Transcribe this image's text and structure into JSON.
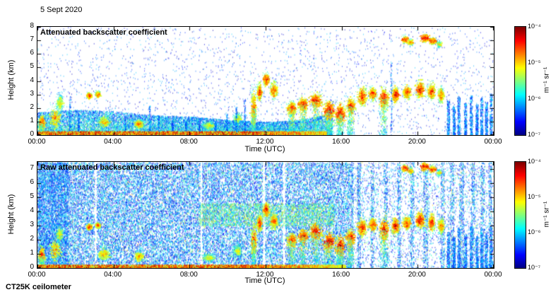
{
  "header": {
    "date": "5 Sept 2020"
  },
  "footer": {
    "instrument": "CT25K ceilometer"
  },
  "chart_data": [
    {
      "type": "heatmap",
      "title": "Attenuated backscatter coefficient",
      "xlabel": "Time (UTC)",
      "ylabel": "Height (km)",
      "x_range_hours": [
        0,
        24
      ],
      "x_tick_hours": [
        0,
        4,
        8,
        12,
        16,
        20,
        24
      ],
      "x_tick_labels": [
        "00:00",
        "04:00",
        "08:00",
        "12:00",
        "16:00",
        "20:00",
        "00:00"
      ],
      "ylim": [
        0,
        8
      ],
      "y_ticks": [
        0,
        1,
        2,
        3,
        4,
        5,
        6,
        7,
        8
      ],
      "colorbar": {
        "colormap": "jet",
        "scale": "log",
        "range": [
          "1e-7",
          "1e-4"
        ],
        "tick_labels": [
          "10⁻⁴",
          "10⁻⁵",
          "10⁻⁶",
          "10⁻⁷"
        ],
        "unit": "m⁻¹ sr⁻¹"
      },
      "render": {
        "seed": 7,
        "background_noise": {
          "n": 2600,
          "vmax": 0.3
        },
        "mixed_layer_top": [
          [
            0,
            1.7
          ],
          [
            2,
            1.9
          ],
          [
            4,
            1.8
          ],
          [
            6,
            1.5
          ],
          [
            8,
            1.4
          ],
          [
            10,
            1.15
          ],
          [
            12,
            1.0
          ],
          [
            13.5,
            1.1
          ],
          [
            15.5,
            1.6
          ]
        ],
        "mixed_layer_n": 15000,
        "surface_layer": {
          "t0": 0,
          "t1": 15.2,
          "h": 0.3,
          "n": 9000
        },
        "clouds": [
          {
            "t": 0.2,
            "h": 0.9,
            "st": 0.12,
            "sh": 0.7,
            "v": 0.85,
            "precip": true
          },
          {
            "t": 0.9,
            "h": 1.3,
            "st": 0.25,
            "sh": 0.9,
            "v": 0.72
          },
          {
            "t": 1.15,
            "h": 2.4,
            "st": 0.15,
            "sh": 0.7,
            "v": 0.62
          },
          {
            "t": 2.7,
            "h": 2.95,
            "st": 0.1,
            "sh": 0.22,
            "v": 0.88
          },
          {
            "t": 3.15,
            "h": 3.05,
            "st": 0.1,
            "sh": 0.22,
            "v": 0.84
          },
          {
            "t": 3.5,
            "h": 1.0,
            "st": 0.25,
            "sh": 0.5,
            "v": 0.7
          },
          {
            "t": 5.3,
            "h": 0.85,
            "st": 0.18,
            "sh": 0.35,
            "v": 0.78
          },
          {
            "t": 9.0,
            "h": 0.75,
            "st": 0.25,
            "sh": 0.35,
            "v": 0.62
          },
          {
            "t": 10.5,
            "h": 1.25,
            "st": 0.18,
            "sh": 0.5,
            "v": 0.6
          },
          {
            "t": 11.35,
            "h": 2.0,
            "st": 0.12,
            "sh": 1.6,
            "v": 0.8,
            "precip": true
          },
          {
            "t": 11.65,
            "h": 3.2,
            "st": 0.1,
            "sh": 0.7,
            "v": 0.85
          },
          {
            "t": 12.0,
            "h": 4.15,
            "st": 0.13,
            "sh": 0.5,
            "v": 0.9
          },
          {
            "t": 12.4,
            "h": 3.35,
            "st": 0.16,
            "sh": 0.7,
            "v": 0.8
          },
          {
            "t": 13.35,
            "h": 2.0,
            "st": 0.2,
            "sh": 0.55,
            "v": 0.85,
            "precip": true
          },
          {
            "t": 13.95,
            "h": 2.3,
            "st": 0.2,
            "sh": 0.55,
            "v": 0.9,
            "precip": true
          },
          {
            "t": 14.6,
            "h": 2.6,
            "st": 0.25,
            "sh": 0.65,
            "v": 0.9,
            "precip": true
          },
          {
            "t": 15.3,
            "h": 1.85,
            "st": 0.25,
            "sh": 0.75,
            "v": 0.95,
            "precip": true
          },
          {
            "t": 15.9,
            "h": 1.55,
            "st": 0.2,
            "sh": 0.85,
            "v": 0.95,
            "precip": true
          },
          {
            "t": 16.45,
            "h": 2.2,
            "st": 0.18,
            "sh": 0.65,
            "v": 0.9,
            "precip": true
          },
          {
            "t": 17.05,
            "h": 2.9,
            "st": 0.2,
            "sh": 0.75,
            "v": 0.85
          },
          {
            "t": 17.6,
            "h": 3.1,
            "st": 0.16,
            "sh": 0.55,
            "v": 0.85
          },
          {
            "t": 18.2,
            "h": 2.75,
            "st": 0.2,
            "sh": 0.85,
            "v": 0.9,
            "precip": true
          },
          {
            "t": 18.8,
            "h": 3.0,
            "st": 0.16,
            "sh": 0.65,
            "v": 0.9
          },
          {
            "t": 19.4,
            "h": 3.2,
            "st": 0.16,
            "sh": 0.55,
            "v": 0.85
          },
          {
            "t": 20.1,
            "h": 3.4,
            "st": 0.2,
            "sh": 0.65,
            "v": 0.9
          },
          {
            "t": 20.7,
            "h": 3.25,
            "st": 0.16,
            "sh": 0.7,
            "v": 0.85
          },
          {
            "t": 21.2,
            "h": 3.0,
            "st": 0.12,
            "sh": 0.55,
            "v": 0.8
          }
        ],
        "cirrus": [
          {
            "t": 19.3,
            "h": 7.1,
            "st": 0.13,
            "sh": 0.3,
            "v": 0.8
          },
          {
            "t": 19.6,
            "h": 6.9,
            "st": 0.1,
            "sh": 0.25,
            "v": 0.7
          },
          {
            "t": 20.35,
            "h": 7.2,
            "st": 0.18,
            "sh": 0.35,
            "v": 0.88
          },
          {
            "t": 20.75,
            "h": 7.0,
            "st": 0.14,
            "sh": 0.3,
            "v": 0.8
          },
          {
            "t": 21.1,
            "h": 6.75,
            "st": 0.09,
            "sh": 0.25,
            "v": 0.6
          }
        ],
        "spikes": [
          [
            1.7,
            2.9
          ],
          [
            2.15,
            1.6
          ],
          [
            4.6,
            1.2
          ],
          [
            5.9,
            2.2
          ],
          [
            6.35,
            1.5
          ],
          [
            7.1,
            1.1
          ],
          [
            7.8,
            1.0
          ],
          [
            8.5,
            1.3
          ],
          [
            9.35,
            1.1
          ],
          [
            9.95,
            1.6
          ],
          [
            10.45,
            2.1
          ],
          [
            10.9,
            2.7
          ],
          [
            18.6,
            5.4
          ]
        ],
        "late_columns": [
          [
            21.6,
            2.6
          ],
          [
            21.9,
            2.2
          ],
          [
            22.15,
            2.9
          ],
          [
            22.5,
            2.4
          ],
          [
            22.8,
            3.0
          ],
          [
            23.1,
            2.3
          ],
          [
            23.35,
            2.8
          ],
          [
            23.6,
            2.5
          ],
          [
            23.85,
            3.1
          ]
        ]
      }
    },
    {
      "type": "heatmap",
      "title": "Raw attenuated backscatter coefficient",
      "xlabel": "Time (UTC)",
      "ylabel": "Height (km)",
      "x_range_hours": [
        0,
        24
      ],
      "x_tick_hours": [
        0,
        4,
        8,
        12,
        16,
        20,
        24
      ],
      "x_tick_labels": [
        "00:00",
        "04:00",
        "08:00",
        "12:00",
        "16:00",
        "20:00",
        "00:00"
      ],
      "ylim": [
        0,
        7.5
      ],
      "y_ticks": [
        0,
        1,
        2,
        3,
        4,
        5,
        6,
        7
      ],
      "colorbar": {
        "colormap": "jet",
        "scale": "log",
        "range": [
          "1e-7",
          "1e-4"
        ],
        "tick_labels": [
          "10⁻⁴",
          "10⁻⁵",
          "10⁻⁶",
          "10⁻⁷"
        ],
        "unit": "m⁻¹ sr⁻¹"
      },
      "render": {
        "seed": 99,
        "dense_noise": {
          "n": 42000,
          "vmax": 0.38,
          "green_frac": 0.06
        },
        "density_profile": {
          "low_after": 16.6,
          "low_density": 0.22,
          "gaps": [
            [
              3.05,
              0.12
            ],
            [
              8.6,
              0.1
            ],
            [
              11.9,
              0.12
            ],
            [
              12.95,
              0.14
            ]
          ],
          "columns": [
            [
              16.9,
              0.2
            ],
            [
              17.6,
              0.18
            ],
            [
              18.3,
              0.2
            ],
            [
              19.0,
              0.18
            ],
            [
              19.7,
              0.2
            ],
            [
              20.4,
              0.25
            ],
            [
              21.3,
              0.2
            ],
            [
              21.8,
              0.22
            ],
            [
              22.3,
              0.25
            ],
            [
              22.9,
              0.2
            ],
            [
              23.4,
              0.2
            ],
            [
              23.8,
              0.15
            ]
          ]
        },
        "regions": [
          {
            "t0": 0,
            "t1": 1.6,
            "h0": 0,
            "h1": 7.5,
            "n": 3000,
            "v0": 0.08,
            "v1": 0.4
          },
          {
            "t0": 8.5,
            "t1": 15.6,
            "h0": 3.0,
            "h1": 4.6,
            "n": 2600,
            "v0": 0.3,
            "v1": 0.65
          }
        ],
        "surface_layer": {
          "t0": 0,
          "t1": 16.2,
          "h": 0.25,
          "n": 10000
        }
      }
    }
  ]
}
